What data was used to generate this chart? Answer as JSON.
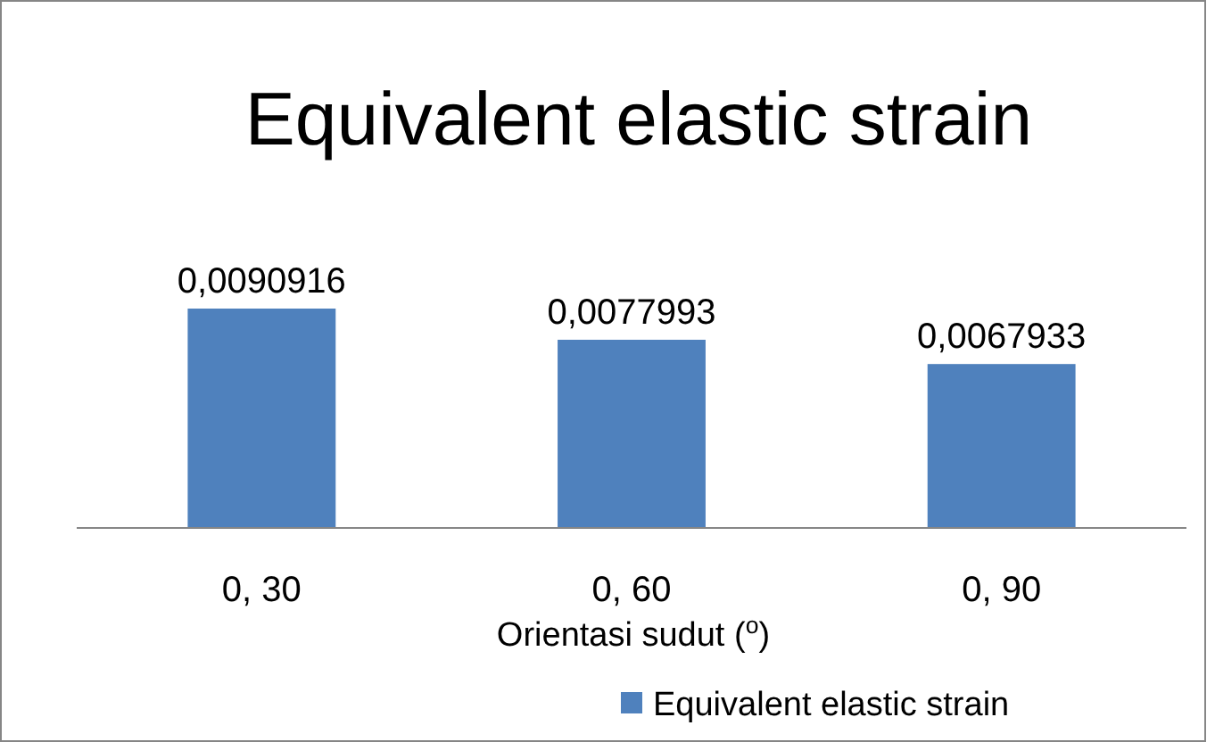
{
  "chart_data": {
    "type": "bar",
    "title": "Equivalent elastic strain",
    "xlabel": "Orientasi sudut ($^{o}$)",
    "categories": [
      "0, 30",
      "0, 60",
      "0, 90"
    ],
    "series": [
      {
        "name": "Equivalent elastic strain",
        "color": "#4f81bd",
        "values": [
          0.0090916,
          0.0077993,
          0.0067933
        ],
        "value_labels": [
          "0,0090916",
          "0,0077993",
          "0,0067933"
        ]
      }
    ],
    "legend": "bottom right"
  }
}
